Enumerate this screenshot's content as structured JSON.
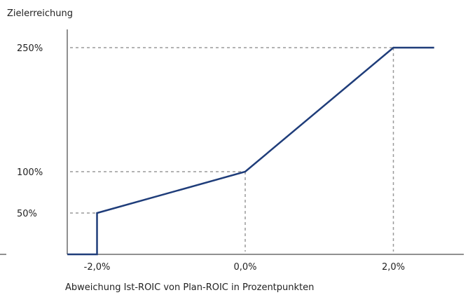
{
  "chart_data": {
    "type": "line",
    "ylabel": "Zielerreichung",
    "xlabel": "Abweichung Ist-ROIC von Plan-ROIC in Prozentpunkten",
    "x_ticks": [
      {
        "value": -2.0,
        "label": "-2,0%"
      },
      {
        "value": 0.0,
        "label": "0,0%"
      },
      {
        "value": 2.0,
        "label": "2,0%"
      }
    ],
    "y_ticks": [
      {
        "value": 50,
        "label": "50%"
      },
      {
        "value": 100,
        "label": "100%"
      },
      {
        "value": 250,
        "label": "250%"
      }
    ],
    "xlim": [
      -2.4,
      3.1
    ],
    "ylim": [
      0,
      300
    ],
    "series": [
      {
        "points": [
          {
            "x": -2.4,
            "y": 0
          },
          {
            "x": -2.0,
            "y": 0
          },
          {
            "x": -2.0,
            "y": 50
          },
          {
            "x": 0.0,
            "y": 100
          },
          {
            "x": 2.0,
            "y": 250
          },
          {
            "x": 2.55,
            "y": 250
          }
        ]
      }
    ],
    "reference_lines": true,
    "colors": {
      "line": "#1f3d7a",
      "axis": "#222222",
      "dashed": "#9a9a9a"
    }
  }
}
